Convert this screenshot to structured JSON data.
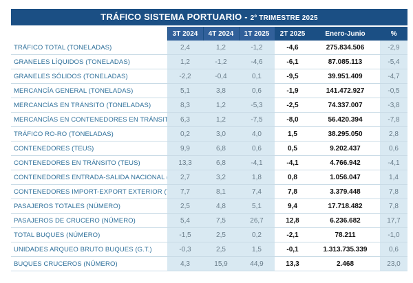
{
  "title": {
    "main": "TRÁFICO SISTEMA PORTUARIO",
    "separator": " - ",
    "period": "2º TRIMESTRE 2025"
  },
  "columns": [
    "3T 2024",
    "4T 2024",
    "1T 2025",
    "2T 2025",
    "Enero-Junio",
    "%"
  ],
  "rows": [
    {
      "label": "TRÁFICO TOTAL (TONELADAS)",
      "q3_2024": "2,4",
      "q4_2024": "1,2",
      "q1_2025": "-1,2",
      "q2_2025": "-4,6",
      "jan_jun": "275.834.506",
      "pct": "-2,9"
    },
    {
      "label": "GRANELES LÍQUIDOS (TONELADAS)",
      "q3_2024": "1,2",
      "q4_2024": "-1,2",
      "q1_2025": "-4,6",
      "q2_2025": "-6,1",
      "jan_jun": "87.085.113",
      "pct": "-5,4"
    },
    {
      "label": "GRANELES SÓLIDOS (TONELADAS)",
      "q3_2024": "-2,2",
      "q4_2024": "-0,4",
      "q1_2025": "0,1",
      "q2_2025": "-9,5",
      "jan_jun": "39.951.409",
      "pct": "-4,7"
    },
    {
      "label": "MERCANCÍA GENERAL (TONELADAS)",
      "q3_2024": "5,1",
      "q4_2024": "3,8",
      "q1_2025": "0,6",
      "q2_2025": "-1,9",
      "jan_jun": "141.472.927",
      "pct": "-0,5"
    },
    {
      "label": "MERCANCÍAS EN TRÁNSITO (TONELADAS)",
      "q3_2024": "8,3",
      "q4_2024": "1,2",
      "q1_2025": "-5,3",
      "q2_2025": "-2,5",
      "jan_jun": "74.337.007",
      "pct": "-3,8"
    },
    {
      "label": "MERCANCÍAS EN CONTENEDORES EN TRÁNSITO (TN)",
      "q3_2024": "6,3",
      "q4_2024": "1,2",
      "q1_2025": "-7,5",
      "q2_2025": "-8,0",
      "jan_jun": "56.420.394",
      "pct": "-7,8"
    },
    {
      "label": "TRÁFICO RO-RO (TONELADAS)",
      "q3_2024": "0,2",
      "q4_2024": "3,0",
      "q1_2025": "4,0",
      "q2_2025": "1,5",
      "jan_jun": "38.295.050",
      "pct": "2,8"
    },
    {
      "label": "CONTENEDORES (TEUS)",
      "q3_2024": "9,9",
      "q4_2024": "6,8",
      "q1_2025": "0,6",
      "q2_2025": "0,5",
      "jan_jun": "9.202.437",
      "pct": "0,6"
    },
    {
      "label": "CONTENEDORES EN TRÁNSITO (TEUS)",
      "q3_2024": "13,3",
      "q4_2024": "6,8",
      "q1_2025": "-4,1",
      "q2_2025": "-4,1",
      "jan_jun": "4.766.942",
      "pct": "-4,1"
    },
    {
      "label": "CONTENEDORES ENTRADA-SALIDA NACIONAL (TEUS)",
      "q3_2024": "2,7",
      "q4_2024": "3,2",
      "q1_2025": "1,8",
      "q2_2025": "0,8",
      "jan_jun": "1.056.047",
      "pct": "1,4"
    },
    {
      "label": "CONTENEDORES IMPORT-EXPORT EXTERIOR (TEUS)",
      "q3_2024": "7,7",
      "q4_2024": "8,1",
      "q1_2025": "7,4",
      "q2_2025": "7,8",
      "jan_jun": "3.379.448",
      "pct": "7,8"
    },
    {
      "label": "PASAJEROS TOTALES (NÚMERO)",
      "q3_2024": "2,5",
      "q4_2024": "4,8",
      "q1_2025": "5,1",
      "q2_2025": "9,4",
      "jan_jun": "17.718.482",
      "pct": "7,8"
    },
    {
      "label": "PASAJEROS DE CRUCERO (NÚMERO)",
      "q3_2024": "5,4",
      "q4_2024": "7,5",
      "q1_2025": "26,7",
      "q2_2025": "12,8",
      "jan_jun": "6.236.682",
      "pct": "17,7"
    },
    {
      "label": "TOTAL BUQUES (NÚMERO)",
      "q3_2024": "-1,5",
      "q4_2024": "2,5",
      "q1_2025": "0,2",
      "q2_2025": "-2,1",
      "jan_jun": "78.211",
      "pct": "-1,0"
    },
    {
      "label": "UNIDADES ARQUEO BRUTO BUQUES (G.T.)",
      "q3_2024": "-0,3",
      "q4_2024": "2,5",
      "q1_2025": "1,5",
      "q2_2025": "-0,1",
      "jan_jun": "1.313.735.339",
      "pct": "0,6"
    },
    {
      "label": "BUQUES CRUCEROS (NÚMERO)",
      "q3_2024": "4,3",
      "q4_2024": "15,9",
      "q1_2025": "44,9",
      "q2_2025": "13,3",
      "jan_jun": "2.468",
      "pct": "23,0"
    }
  ]
}
